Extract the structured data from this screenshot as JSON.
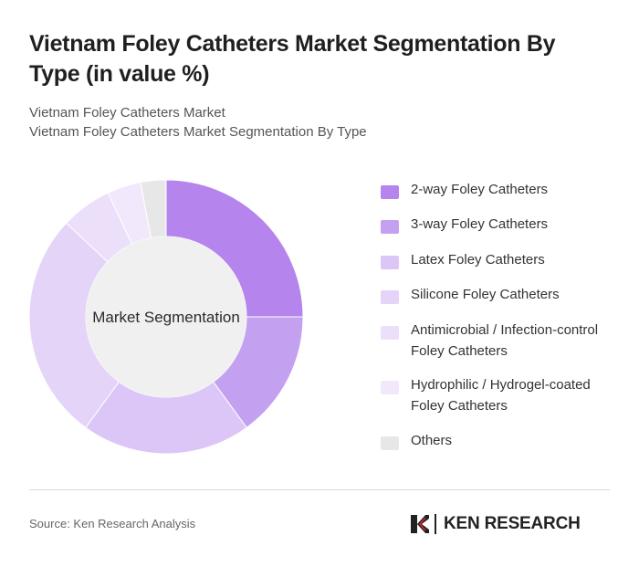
{
  "title": "Vietnam Foley Catheters Market Segmentation By Type (in value %)",
  "subtitle_line1": "Vietnam Foley Catheters Market",
  "subtitle_line2": "Vietnam Foley Catheters Market Segmentation By Type",
  "source": "Source: Ken Research Analysis",
  "brand": "KEN RESEARCH",
  "chart_data": {
    "type": "pie",
    "variant": "donut",
    "center_label": "Market Segmentation",
    "legend_position": "right",
    "categories": [
      "2-way Foley Catheters",
      "3-way Foley Catheters",
      "Latex Foley Catheters",
      "Silicone Foley Catheters",
      "Antimicrobial / Infection-control Foley Catheters",
      "Hydrophilic / Hydrogel-coated Foley Catheters",
      "Others"
    ],
    "values": [
      25,
      15,
      20,
      27,
      6,
      4,
      3
    ],
    "colors": [
      "#b584ec",
      "#c4a0f0",
      "#dcc6f8",
      "#e4d4f8",
      "#ebdff9",
      "#f1e9fb",
      "#e7e7e7"
    ]
  }
}
